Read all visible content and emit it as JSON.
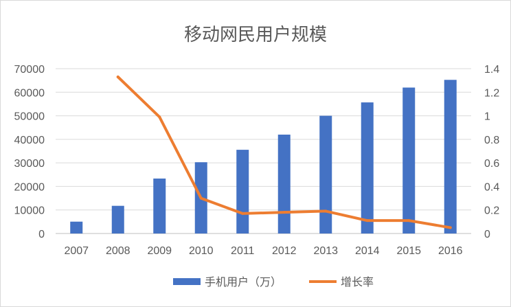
{
  "chart_data": {
    "type": "bar",
    "title": "移动网民用户规模",
    "categories": [
      "2007",
      "2008",
      "2009",
      "2010",
      "2011",
      "2012",
      "2013",
      "2014",
      "2015",
      "2016"
    ],
    "series": [
      {
        "name": "手机用户（万）",
        "type": "bar",
        "axis": "left",
        "color": "#4472c4",
        "values": [
          5040,
          11760,
          23344,
          30274,
          35558,
          41997,
          50006,
          55678,
          61981,
          65256
        ]
      },
      {
        "name": "增长率",
        "type": "line",
        "axis": "right",
        "color": "#ed7d31",
        "values": [
          null,
          1.33,
          0.99,
          0.3,
          0.17,
          0.18,
          0.19,
          0.11,
          0.11,
          0.05
        ]
      }
    ],
    "y_left": {
      "min": 0,
      "max": 70000,
      "ticks": [
        "0",
        "10000",
        "20000",
        "30000",
        "40000",
        "50000",
        "60000",
        "70000"
      ]
    },
    "y_right": {
      "min": 0,
      "max": 1.4,
      "ticks": [
        "0",
        "0.2",
        "0.4",
        "0.6",
        "0.8",
        "1",
        "1.2",
        "1.4"
      ]
    },
    "grid": true,
    "legend": "bottom"
  }
}
